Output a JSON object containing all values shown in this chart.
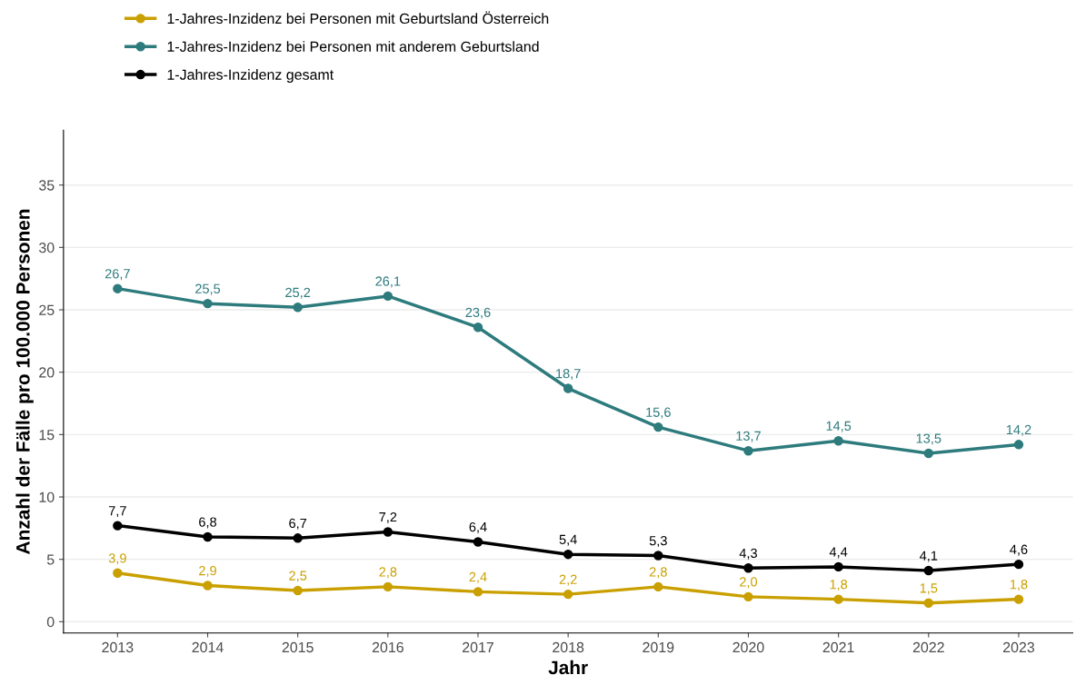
{
  "chart_data": {
    "type": "line",
    "xlabel": "Jahr",
    "ylabel": "Anzahl der Fälle pro 100.000 Personen",
    "categories": [
      "2013",
      "2014",
      "2015",
      "2016",
      "2017",
      "2018",
      "2019",
      "2020",
      "2021",
      "2022",
      "2023"
    ],
    "series": [
      {
        "name": "1-Jahres-Inzidenz bei Personen mit Geburtsland Österreich",
        "color": "#c9a000",
        "values": [
          3.9,
          2.9,
          2.5,
          2.8,
          2.4,
          2.2,
          2.8,
          2.0,
          1.8,
          1.5,
          1.8
        ],
        "value_labels": [
          "3,9",
          "2,9",
          "2,5",
          "2,8",
          "2,4",
          "2,2",
          "2,8",
          "2,0",
          "1,8",
          "1,5",
          "1,8"
        ]
      },
      {
        "name": "1-Jahres-Inzidenz bei Personen mit anderem Geburtsland",
        "color": "#2e7b7d",
        "values": [
          26.7,
          25.5,
          25.2,
          26.1,
          23.6,
          18.7,
          15.6,
          13.7,
          14.5,
          13.5,
          14.2
        ],
        "value_labels": [
          "26,7",
          "25,5",
          "25,2",
          "26,1",
          "23,6",
          "18,7",
          "15,6",
          "13,7",
          "14,5",
          "13,5",
          "14,2"
        ]
      },
      {
        "name": "1-Jahres-Inzidenz gesamt",
        "color": "#000000",
        "values": [
          7.7,
          6.8,
          6.7,
          7.2,
          6.4,
          5.4,
          5.3,
          4.3,
          4.4,
          4.1,
          4.6
        ],
        "value_labels": [
          "7,7",
          "6,8",
          "6,7",
          "7,2",
          "6,4",
          "5,4",
          "5,3",
          "4,3",
          "4,4",
          "4,1",
          "4,6"
        ]
      }
    ],
    "ylim": [
      -0.9,
      39.4
    ],
    "yticks": [
      0,
      5,
      10,
      15,
      20,
      25,
      30,
      35
    ],
    "grid": "y",
    "legend": "top left",
    "marker": "circle",
    "line_style": "solid"
  }
}
